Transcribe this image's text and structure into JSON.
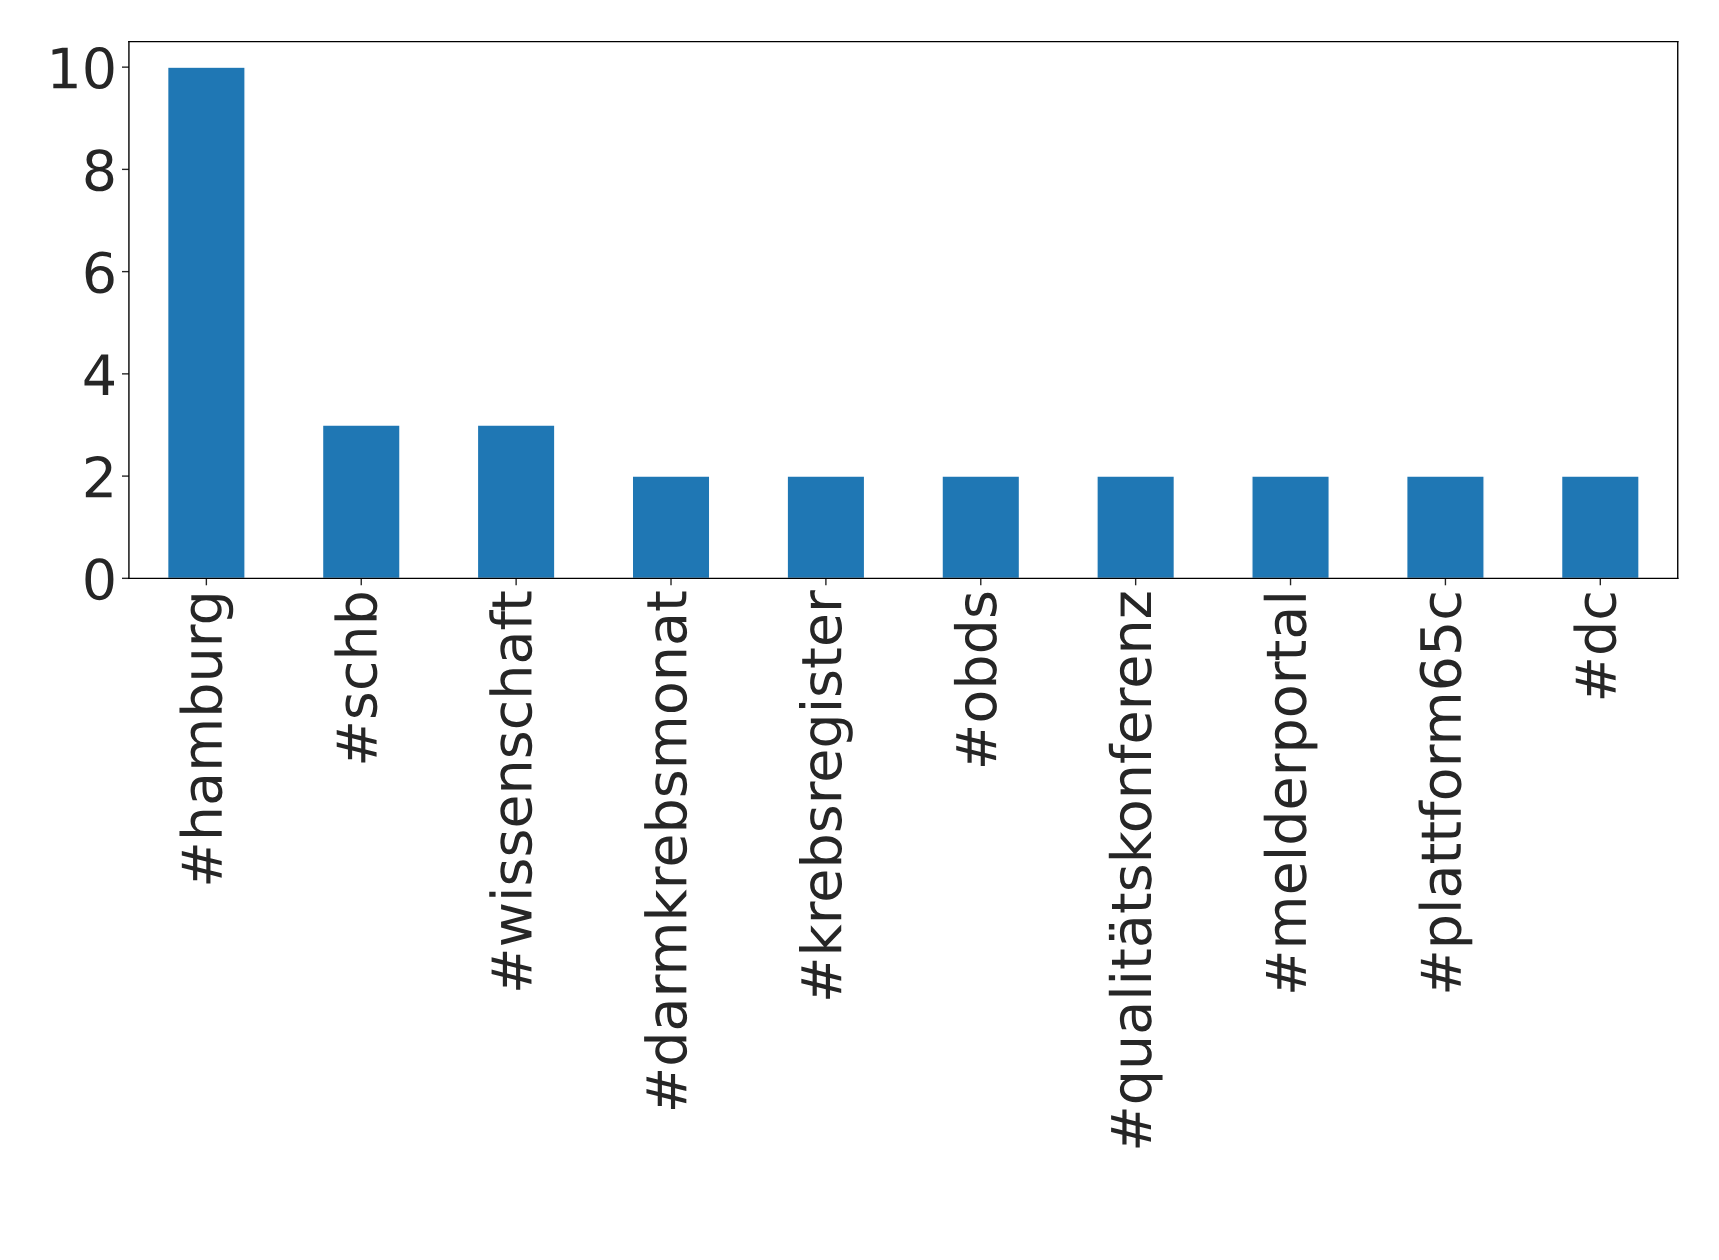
{
  "chart_data": {
    "type": "bar",
    "categories": [
      "#hamburg",
      "#schb",
      "#wissenschaft",
      "#darmkrebsmonat",
      "#krebsregister",
      "#obds",
      "#qualitätskonferenz",
      "#melderportal",
      "#plattform65c",
      "#dc"
    ],
    "values": [
      10,
      3,
      3,
      2,
      2,
      2,
      2,
      2,
      2,
      2
    ],
    "color": "#1f77b4",
    "ylim": [
      0,
      10.5
    ],
    "yticks": [
      0,
      2,
      4,
      6,
      8,
      10
    ],
    "grid": false,
    "legend": false
  }
}
